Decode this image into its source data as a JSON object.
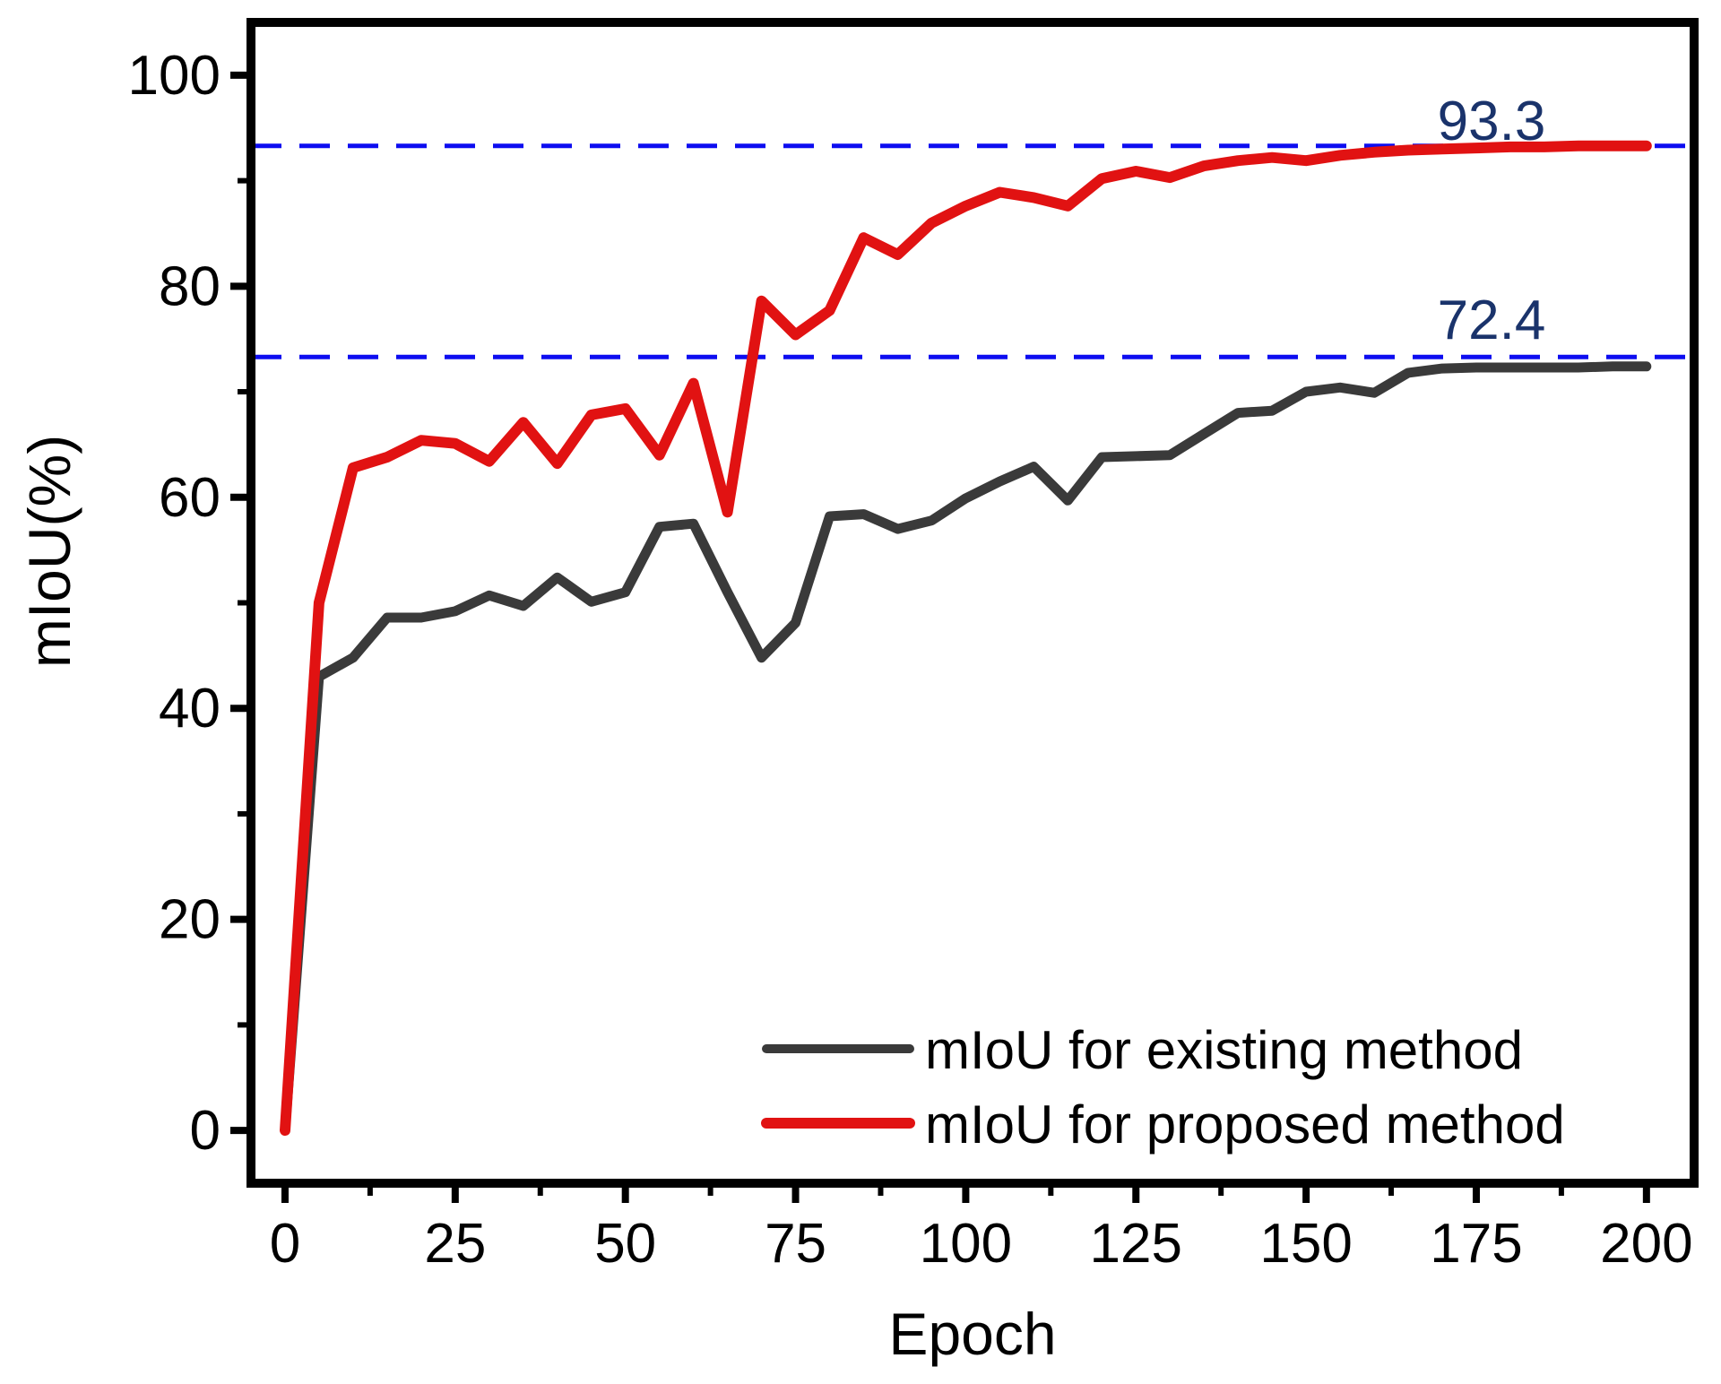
{
  "figure": {
    "background": "#ffffff",
    "axis_color": "#000000"
  },
  "chart_data": {
    "type": "line",
    "title": "",
    "xlabel": "Epoch",
    "ylabel": "mIoU(%)",
    "xlim": [
      -5,
      207
    ],
    "ylim": [
      -5,
      105
    ],
    "grid": false,
    "legend_position": "lower right",
    "x_major_ticks": [
      0,
      25,
      50,
      75,
      100,
      125,
      150,
      175,
      200
    ],
    "x_minor_ticks": [
      12.5,
      37.5,
      62.5,
      87.5,
      112.5,
      137.5,
      162.5,
      187.5
    ],
    "y_major_ticks": [
      0,
      20,
      40,
      60,
      80,
      100
    ],
    "y_minor_ticks": [
      10,
      30,
      50,
      70,
      90
    ],
    "x": [
      0,
      5,
      10,
      15,
      20,
      25,
      30,
      35,
      40,
      45,
      50,
      55,
      60,
      65,
      70,
      75,
      80,
      85,
      90,
      95,
      100,
      105,
      110,
      115,
      120,
      125,
      130,
      135,
      140,
      145,
      150,
      155,
      160,
      165,
      170,
      175,
      180,
      185,
      190,
      195,
      200
    ],
    "series": [
      {
        "name": "mIoU for existing method",
        "color": "#3a3a3a",
        "values": [
          0,
          43.0,
          44.8,
          48.6,
          48.6,
          49.2,
          50.7,
          49.7,
          52.4,
          50.1,
          51.0,
          57.2,
          57.5,
          51.0,
          44.8,
          48.1,
          58.2,
          58.4,
          57.0,
          57.8,
          59.9,
          61.5,
          62.9,
          59.7,
          63.8,
          63.9,
          64.0,
          66.0,
          68.0,
          68.2,
          70.0,
          70.4,
          69.9,
          71.8,
          72.2,
          72.3,
          72.3,
          72.3,
          72.3,
          72.4,
          72.4
        ]
      },
      {
        "name": "mIoU for proposed method",
        "color": "#e11212",
        "values": [
          0,
          50.0,
          62.8,
          63.8,
          65.4,
          65.1,
          63.4,
          67.1,
          63.2,
          67.8,
          68.4,
          64.0,
          70.8,
          58.6,
          78.6,
          75.4,
          77.7,
          84.6,
          83.0,
          86.0,
          87.6,
          88.9,
          88.4,
          87.6,
          90.2,
          90.9,
          90.3,
          91.4,
          91.9,
          92.2,
          91.9,
          92.4,
          92.7,
          92.9,
          93.0,
          93.1,
          93.2,
          93.2,
          93.3,
          93.3,
          93.3
        ]
      }
    ],
    "reference_lines": [
      {
        "label": "93.3",
        "value": 93.3,
        "draw_at": 93.3,
        "color": "#0d0df0",
        "style": "dashed"
      },
      {
        "label": "72.4",
        "value": 72.4,
        "draw_at": 73.3,
        "color": "#0d0df0",
        "style": "dashed"
      }
    ],
    "annotation_color": "#1a336b"
  }
}
